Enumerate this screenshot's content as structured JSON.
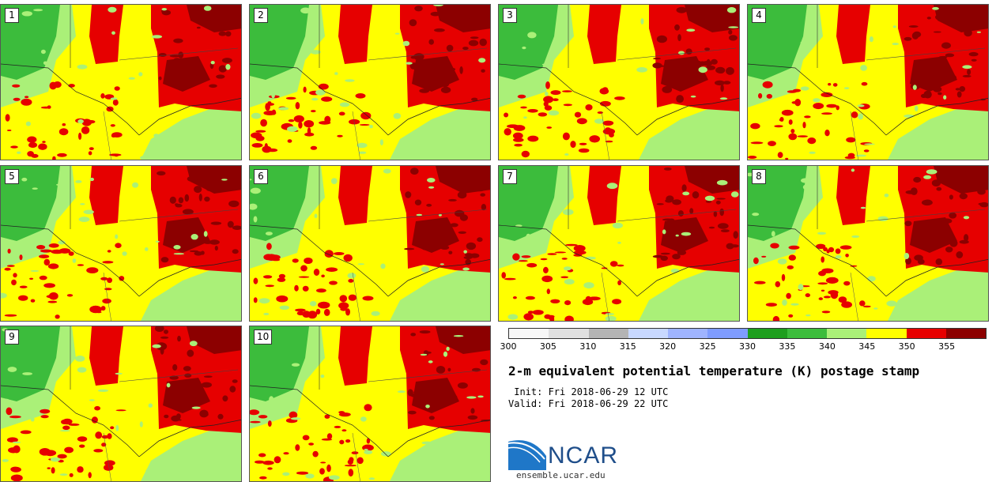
{
  "panels": [
    {
      "label": "1"
    },
    {
      "label": "2"
    },
    {
      "label": "3"
    },
    {
      "label": "4"
    },
    {
      "label": "5"
    },
    {
      "label": "6"
    },
    {
      "label": "7"
    },
    {
      "label": "8"
    },
    {
      "label": "9"
    },
    {
      "label": "10"
    }
  ],
  "colorbar": {
    "colors": [
      "#f7f7f7",
      "#e0e0e0",
      "#b4b4b4",
      "#c8d8ff",
      "#9fb4ff",
      "#7f9cff",
      "#1e9e1e",
      "#3cbc3c",
      "#aaf078",
      "#ffff00",
      "#e60000",
      "#8c0000"
    ],
    "ticks": [
      "300",
      "305",
      "310",
      "315",
      "320",
      "325",
      "330",
      "335",
      "340",
      "345",
      "350",
      "355"
    ]
  },
  "title": "2-m equivalent potential temperature (K) postage stamp",
  "init": " Init: Fri 2018-06-29 12 UTC",
  "valid": "Valid: Fri 2018-06-29 22 UTC",
  "logo": {
    "text": "NCAR",
    "url": "ensemble.ucar.edu"
  },
  "map_colors": {
    "dark_red": "#8c0000",
    "red": "#e60000",
    "yellow": "#ffff00",
    "light_green": "#aaf078",
    "green": "#3cbc3c",
    "dark_green": "#1e9e1e"
  }
}
